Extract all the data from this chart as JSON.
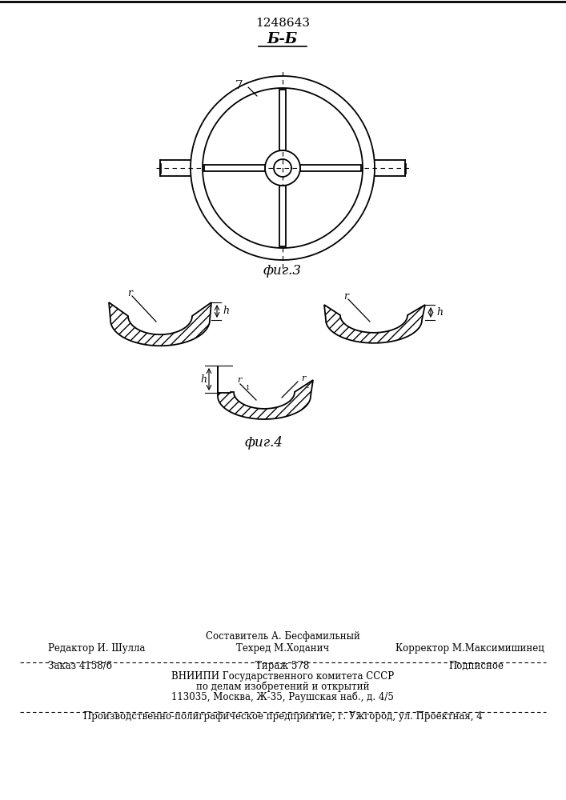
{
  "patent_number": "1248643",
  "fig3_label": "фиг.3",
  "fig4_label": "фиг.4",
  "section_label": "Б-Б",
  "label_7": "7",
  "background_color": "#ffffff",
  "line_color": "#000000",
  "footer_line_sestavitel": "Составитель А. Бесфамильный",
  "footer_redaktor": "Редактор И. Шулла",
  "footer_tehred": "Техред М.Ходанич",
  "footer_korrektor": "Корректор М.Максимишинец",
  "footer_zakaz": "Заказ 4158/6",
  "footer_tirazh": "Тираж 578",
  "footer_podpisnoe": "Подписное",
  "footer_vniip1": "ВНИИПИ Государственного комитета СССР",
  "footer_vniip2": "по делам изобретений и открытий",
  "footer_vniip3": "113035, Москва, Ж-35, Раушская наб., д. 4/5",
  "footer_prod": "Производственно-полиграфическое предприятие, г. Ужгород, ул. Проектная, 4"
}
